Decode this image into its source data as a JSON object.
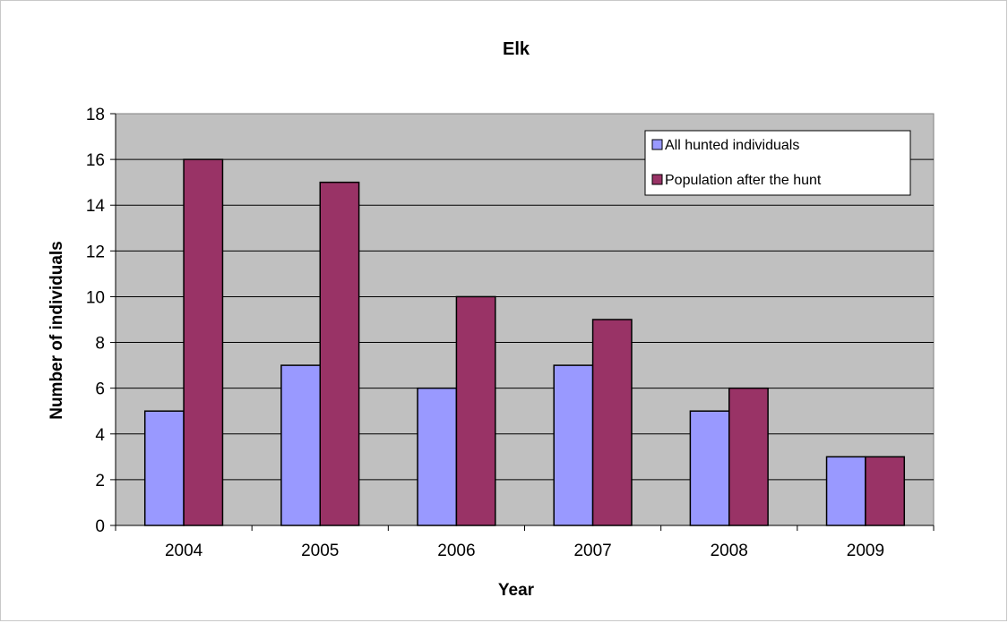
{
  "chart_data": {
    "type": "bar",
    "title": "Elk",
    "xlabel": "Year",
    "ylabel": "Number of individuals",
    "categories": [
      "2004",
      "2005",
      "2006",
      "2007",
      "2008",
      "2009"
    ],
    "series": [
      {
        "name": "All hunted individuals",
        "values": [
          5,
          7,
          6,
          7,
          5,
          3
        ],
        "color": "#9999ff"
      },
      {
        "name": "Population after the hunt",
        "values": [
          16,
          15,
          10,
          9,
          6,
          3
        ],
        "color": "#993366"
      }
    ],
    "ylim": [
      0,
      18
    ],
    "yticks": [
      0,
      2,
      4,
      6,
      8,
      10,
      12,
      14,
      16,
      18
    ],
    "plot_background": "#c0c0c0",
    "grid": true,
    "legend_position": "top-right"
  }
}
